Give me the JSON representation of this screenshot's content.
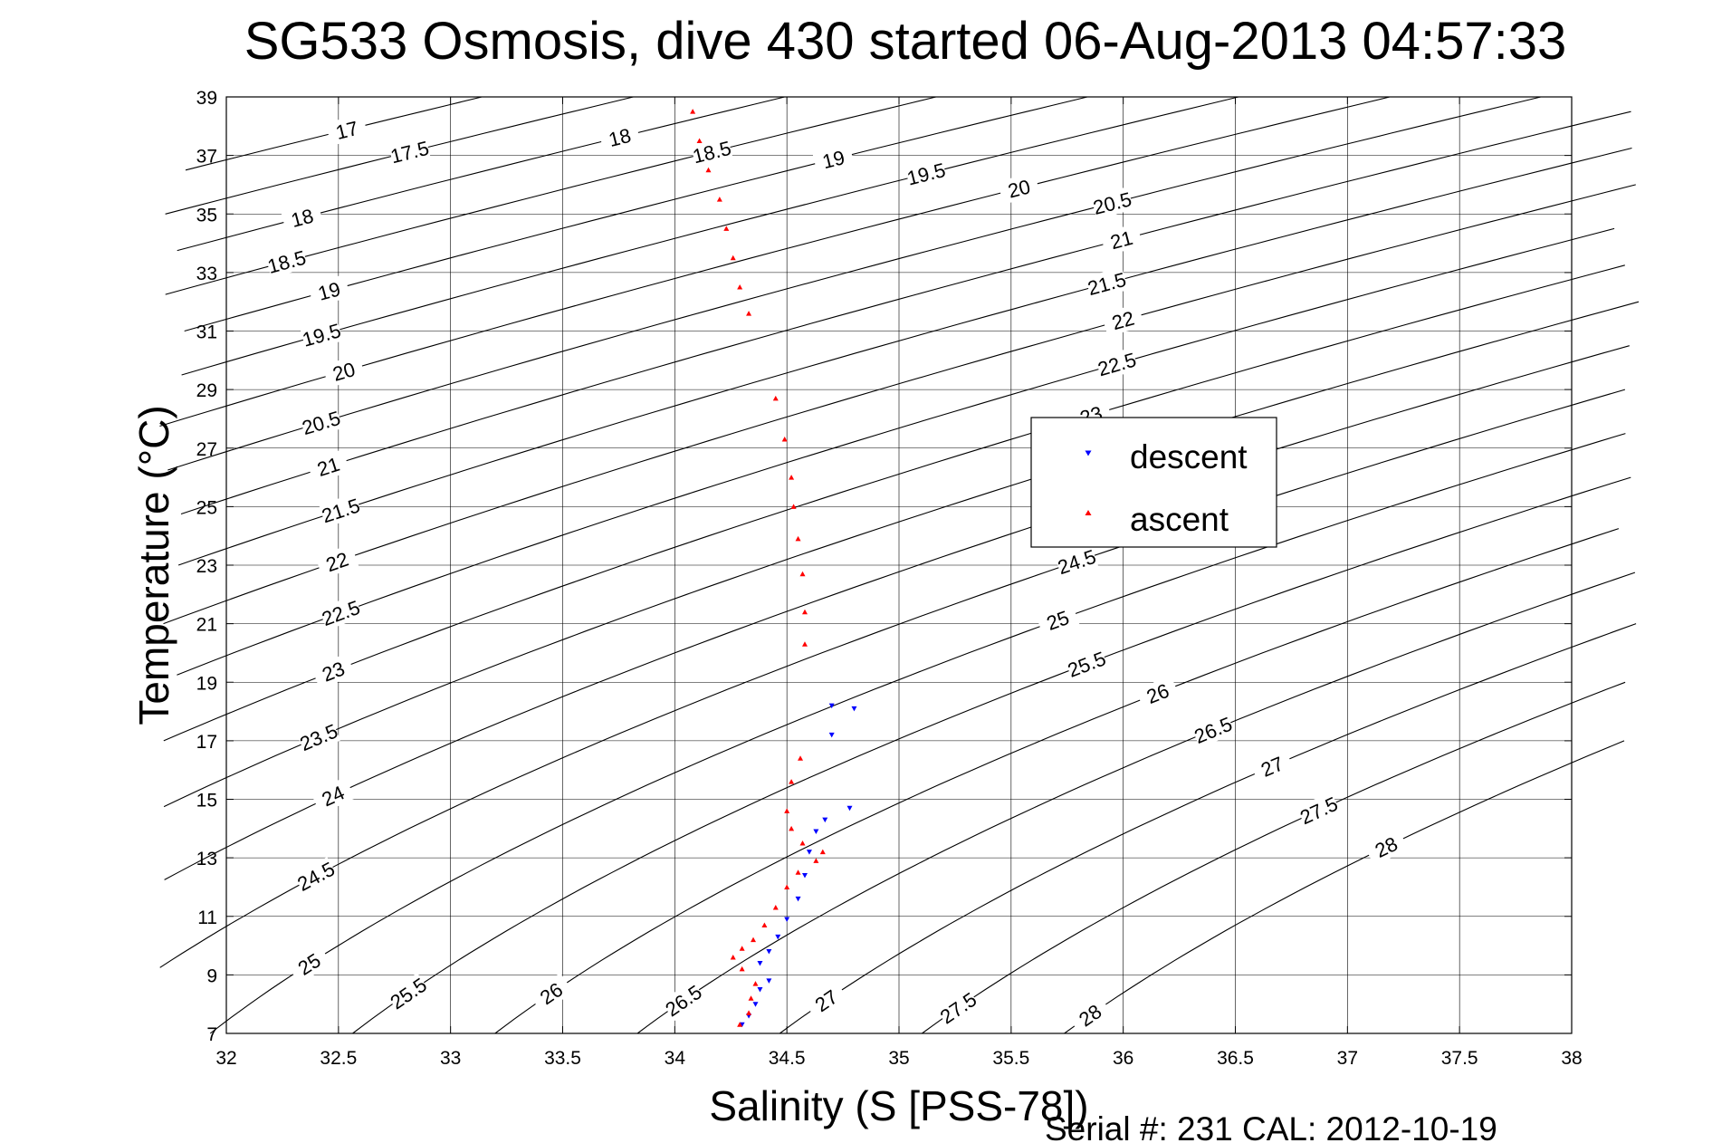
{
  "chart_data": {
    "type": "scatter",
    "title": "SG533 Osmosis, dive 430 started 06-Aug-2013 04:57:33",
    "xlabel": "Salinity (S [PSS-78])",
    "ylabel": "Temperature (°C)",
    "footer": "Serial #: 231  CAL: 2012-10-19",
    "xlim": [
      32,
      38
    ],
    "ylim": [
      7,
      39
    ],
    "xticks": [
      "32",
      "32.5",
      "33",
      "33.5",
      "34",
      "34.5",
      "35",
      "35.5",
      "36",
      "36.5",
      "37",
      "37.5",
      "38"
    ],
    "yticks": [
      "7",
      "9",
      "11",
      "13",
      "15",
      "17",
      "19",
      "21",
      "23",
      "25",
      "27",
      "29",
      "31",
      "33",
      "35",
      "37",
      "39"
    ],
    "grid": true,
    "legend_position": "center-right",
    "density_contours": [
      "17",
      "17.5",
      "18",
      "18.5",
      "19",
      "19.5",
      "20",
      "20.5",
      "21",
      "21.5",
      "22",
      "22.5",
      "23",
      "23.5",
      "24",
      "24.5",
      "25",
      "25.5",
      "26",
      "26.5",
      "27",
      "27.5",
      "28"
    ],
    "series": [
      {
        "name": "descent",
        "color": "#0000ff",
        "marker": "triangle-down",
        "points": [
          [
            34.8,
            18.1
          ],
          [
            34.7,
            18.2
          ],
          [
            34.7,
            17.2
          ],
          [
            34.78,
            14.7
          ],
          [
            34.67,
            14.3
          ],
          [
            34.63,
            13.9
          ],
          [
            34.6,
            13.2
          ],
          [
            34.58,
            12.4
          ],
          [
            34.55,
            11.6
          ],
          [
            34.5,
            10.9
          ],
          [
            34.46,
            10.3
          ],
          [
            34.42,
            9.8
          ],
          [
            34.38,
            9.4
          ],
          [
            34.42,
            8.8
          ],
          [
            34.38,
            8.5
          ],
          [
            34.36,
            8.0
          ],
          [
            34.33,
            7.6
          ],
          [
            34.3,
            7.3
          ]
        ]
      },
      {
        "name": "ascent",
        "color": "#ff0000",
        "marker": "triangle-up",
        "points": [
          [
            34.08,
            38.5
          ],
          [
            34.11,
            37.5
          ],
          [
            34.15,
            36.5
          ],
          [
            34.2,
            35.5
          ],
          [
            34.23,
            34.5
          ],
          [
            34.26,
            33.5
          ],
          [
            34.29,
            32.5
          ],
          [
            34.33,
            31.6
          ],
          [
            34.45,
            28.7
          ],
          [
            34.49,
            27.3
          ],
          [
            34.52,
            26.0
          ],
          [
            34.53,
            25.0
          ],
          [
            34.55,
            23.9
          ],
          [
            34.57,
            22.7
          ],
          [
            34.58,
            21.4
          ],
          [
            34.58,
            20.3
          ],
          [
            34.56,
            16.4
          ],
          [
            34.52,
            15.6
          ],
          [
            34.5,
            14.6
          ],
          [
            34.52,
            14.0
          ],
          [
            34.57,
            13.5
          ],
          [
            34.66,
            13.2
          ],
          [
            34.63,
            12.9
          ],
          [
            34.55,
            12.5
          ],
          [
            34.5,
            12.0
          ],
          [
            34.45,
            11.3
          ],
          [
            34.4,
            10.7
          ],
          [
            34.35,
            10.2
          ],
          [
            34.3,
            9.9
          ],
          [
            34.26,
            9.6
          ],
          [
            34.3,
            9.2
          ],
          [
            34.36,
            8.7
          ],
          [
            34.34,
            8.2
          ],
          [
            34.33,
            7.7
          ],
          [
            34.29,
            7.3
          ]
        ]
      }
    ]
  }
}
